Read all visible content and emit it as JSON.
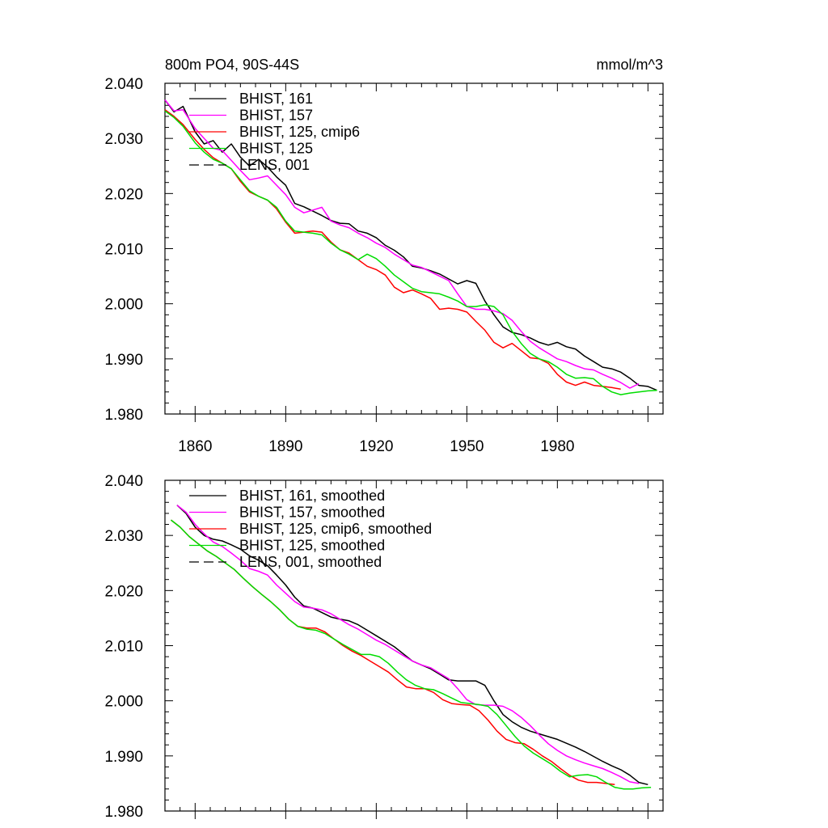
{
  "chart_data": [
    {
      "type": "line",
      "title": "800m PO4, 90S-44S",
      "units": "mmol/m^3",
      "xlim": [
        1850,
        2015
      ],
      "ylim": [
        1.98,
        2.04
      ],
      "x_ticks": [
        1860,
        1890,
        1920,
        1950,
        1980
      ],
      "y_ticks": [
        "2.040",
        "2.030",
        "2.020",
        "2.010",
        "2.000",
        "1.990",
        "1.980"
      ],
      "series": [
        {
          "name": "BHIST, 161",
          "color": "#000000",
          "dash": false,
          "x": [
            1850,
            1853,
            1856,
            1860,
            1863,
            1866,
            1869,
            1872,
            1875,
            1878,
            1881,
            1884,
            1887,
            1890,
            1893,
            1896,
            1899,
            1902,
            1905,
            1908,
            1911,
            1914,
            1917,
            1920,
            1923,
            1926,
            1929,
            1932,
            1935,
            1938,
            1941,
            1944,
            1947,
            1950,
            1953,
            1956,
            1959,
            1962,
            1965,
            1968,
            1971,
            1974,
            1977,
            1980,
            1983,
            1986,
            1989,
            1992,
            1995,
            1998,
            2001,
            2004,
            2007,
            2010,
            2013
          ],
          "y": [
            2.037,
            2.0348,
            2.0358,
            2.0312,
            2.029,
            2.0296,
            2.0275,
            2.029,
            2.0266,
            2.025,
            2.0262,
            2.0248,
            2.023,
            2.0215,
            2.0182,
            2.0176,
            2.0168,
            2.016,
            2.0151,
            2.0146,
            2.0145,
            2.0132,
            2.0128,
            2.012,
            2.0106,
            2.0097,
            2.0085,
            2.0068,
            2.0065,
            2.006,
            2.0054,
            2.0045,
            2.0036,
            2.0042,
            2.0037,
            2.0005,
            1.998,
            1.9958,
            1.9948,
            1.9944,
            1.9938,
            1.993,
            1.9925,
            1.993,
            1.9922,
            1.9918,
            1.9905,
            1.9895,
            1.9885,
            1.9882,
            1.9876,
            1.9865,
            1.9852,
            1.985,
            1.9843
          ]
        },
        {
          "name": "BHIST, 157",
          "color": "#ff00ff",
          "dash": false,
          "x": [
            1850,
            1853,
            1856,
            1860,
            1863,
            1866,
            1869,
            1872,
            1875,
            1878,
            1881,
            1884,
            1887,
            1890,
            1893,
            1896,
            1899,
            1902,
            1905,
            1908,
            1911,
            1914,
            1917,
            1920,
            1923,
            1926,
            1929,
            1932,
            1935,
            1938,
            1941,
            1944,
            1947,
            1950,
            1953,
            1956,
            1959,
            1962,
            1965,
            1968,
            1971,
            1974,
            1977,
            1980,
            1983,
            1986,
            1989,
            1992,
            1995,
            1998,
            2001,
            2004,
            2007
          ],
          "y": [
            2.037,
            2.035,
            2.0352,
            2.0318,
            2.03,
            2.0282,
            2.0278,
            2.026,
            2.0242,
            2.0225,
            2.0228,
            2.0232,
            2.0215,
            2.0198,
            2.0175,
            2.0165,
            2.017,
            2.0175,
            2.015,
            2.0143,
            2.0138,
            2.0128,
            2.012,
            2.011,
            2.0102,
            2.009,
            2.008,
            2.007,
            2.0066,
            2.0058,
            2.005,
            2.0042,
            2.0018,
            1.9995,
            1.999,
            1.999,
            1.9987,
            1.9982,
            1.997,
            1.995,
            1.9932,
            1.992,
            1.991,
            1.99,
            1.9895,
            1.9888,
            1.9882,
            1.988,
            1.9872,
            1.9865,
            1.9857,
            1.9847,
            1.9855
          ]
        },
        {
          "name": "BHIST, 125, cmip6",
          "color": "#ff0000",
          "dash": false,
          "x": [
            1850,
            1853,
            1856,
            1860,
            1863,
            1866,
            1869,
            1872,
            1875,
            1878,
            1881,
            1884,
            1887,
            1890,
            1893,
            1896,
            1899,
            1902,
            1905,
            1908,
            1911,
            1914,
            1917,
            1920,
            1923,
            1926,
            1929,
            1932,
            1935,
            1938,
            1941,
            1944,
            1947,
            1950,
            1953,
            1956,
            1959,
            1962,
            1965,
            1968,
            1971,
            1974,
            1977,
            1980,
            1983,
            1986,
            1989,
            1992,
            1995,
            1998,
            2001
          ],
          "y": [
            2.0352,
            2.034,
            2.0325,
            2.0298,
            2.028,
            2.0265,
            2.0255,
            2.0245,
            2.0222,
            2.0203,
            2.0195,
            2.0188,
            2.0172,
            2.0148,
            2.0128,
            2.013,
            2.0132,
            2.013,
            2.0112,
            2.0098,
            2.0092,
            2.008,
            2.0068,
            2.0062,
            2.0052,
            2.003,
            2.002,
            2.0025,
            2.0018,
            2.001,
            1.999,
            1.9992,
            1.999,
            1.9985,
            1.9968,
            1.9952,
            1.993,
            1.992,
            1.9928,
            1.9915,
            1.9902,
            1.99,
            1.9892,
            1.9872,
            1.9858,
            1.9852,
            1.9858,
            1.9852,
            1.985,
            1.9848,
            1.9845
          ]
        },
        {
          "name": "BHIST, 125",
          "color": "#00dd00",
          "dash": false,
          "x": [
            1850,
            1853,
            1856,
            1860,
            1863,
            1866,
            1869,
            1872,
            1875,
            1878,
            1881,
            1884,
            1887,
            1890,
            1893,
            1896,
            1899,
            1902,
            1905,
            1908,
            1911,
            1914,
            1917,
            1920,
            1923,
            1926,
            1929,
            1932,
            1935,
            1938,
            1941,
            1944,
            1947,
            1950,
            1953,
            1956,
            1959,
            1962,
            1965,
            1968,
            1971,
            1974,
            1977,
            1980,
            1983,
            1986,
            1989,
            1992,
            1995,
            1998,
            2001,
            2004,
            2007,
            2010,
            2013
          ],
          "y": [
            2.035,
            2.0338,
            2.0322,
            2.0292,
            2.0275,
            2.0262,
            2.0255,
            2.0245,
            2.0225,
            2.0205,
            2.0195,
            2.0188,
            2.0175,
            2.015,
            2.0132,
            2.013,
            2.0128,
            2.0125,
            2.011,
            2.0098,
            2.009,
            2.008,
            2.009,
            2.0082,
            2.0068,
            2.0052,
            2.004,
            2.0028,
            2.0022,
            2.002,
            2.0018,
            2.0012,
            2.0005,
            1.9995,
            1.9995,
            1.9998,
            1.9995,
            1.998,
            1.995,
            1.9928,
            1.991,
            1.99,
            1.9895,
            1.9885,
            1.9872,
            1.9865,
            1.9866,
            1.9864,
            1.985,
            1.984,
            1.9835,
            1.9838,
            1.984,
            1.9842,
            1.9843
          ]
        },
        {
          "name": "LENS, 001",
          "color": "#000000",
          "dash": true,
          "x": [],
          "y": []
        }
      ]
    },
    {
      "type": "line",
      "title": "",
      "xlim": [
        1850,
        2015
      ],
      "ylim": [
        1.98,
        2.04
      ],
      "y_ticks": [
        "2.040",
        "2.030",
        "2.020",
        "2.010",
        "2.000",
        "1.990",
        "1.980"
      ],
      "series": [
        {
          "name": "BHIST, 161, smoothed",
          "color": "#000000",
          "dash": false,
          "x": [
            1854,
            1857,
            1860,
            1863,
            1866,
            1869,
            1872,
            1875,
            1878,
            1881,
            1884,
            1887,
            1890,
            1893,
            1896,
            1899,
            1902,
            1905,
            1908,
            1911,
            1914,
            1917,
            1920,
            1923,
            1926,
            1929,
            1932,
            1935,
            1938,
            1941,
            1944,
            1947,
            1950,
            1953,
            1956,
            1959,
            1962,
            1965,
            1968,
            1971,
            1974,
            1977,
            1980,
            1983,
            1986,
            1989,
            1992,
            1995,
            1998,
            2001,
            2004,
            2007,
            2010
          ],
          "y": [
            2.0355,
            2.034,
            2.0315,
            2.03,
            2.0293,
            2.029,
            2.0283,
            2.0275,
            2.0263,
            2.0255,
            2.0245,
            2.0228,
            2.021,
            2.0188,
            2.0172,
            2.0168,
            2.016,
            2.0152,
            2.0148,
            2.0145,
            2.0138,
            2.0128,
            2.0118,
            2.0108,
            2.0098,
            2.0085,
            2.0072,
            2.0065,
            2.0058,
            2.0048,
            2.0038,
            2.0036,
            2.0036,
            2.0036,
            2.0028,
            2.0,
            1.9975,
            1.9962,
            1.9952,
            1.9945,
            1.994,
            1.9935,
            1.993,
            1.9923,
            1.9916,
            1.9908,
            1.9899,
            1.989,
            1.9882,
            1.9875,
            1.9865,
            1.9852,
            1.9848
          ]
        },
        {
          "name": "BHIST, 157, smoothed",
          "color": "#ff00ff",
          "dash": false,
          "x": [
            1854,
            1857,
            1860,
            1863,
            1866,
            1869,
            1872,
            1875,
            1878,
            1881,
            1884,
            1887,
            1890,
            1893,
            1896,
            1899,
            1902,
            1905,
            1908,
            1911,
            1914,
            1917,
            1920,
            1923,
            1926,
            1929,
            1932,
            1935,
            1938,
            1941,
            1944,
            1947,
            1950,
            1953,
            1956,
            1959,
            1962,
            1965,
            1968,
            1971,
            1974,
            1977,
            1980,
            1983,
            1986,
            1989,
            1992,
            1995,
            1998,
            2001,
            2004,
            2007
          ],
          "y": [
            2.0355,
            2.0342,
            2.032,
            2.0303,
            2.0288,
            2.028,
            2.0268,
            2.0255,
            2.024,
            2.0235,
            2.0228,
            2.021,
            2.0195,
            2.018,
            2.017,
            2.0168,
            2.0165,
            2.0158,
            2.0148,
            2.0138,
            2.013,
            2.012,
            2.011,
            2.0102,
            2.0092,
            2.0082,
            2.0072,
            2.0065,
            2.006,
            2.005,
            2.004,
            2.0022,
            2.0002,
            1.9993,
            1.9992,
            1.9992,
            1.999,
            1.9982,
            1.997,
            1.9955,
            1.9938,
            1.9922,
            1.991,
            1.99,
            1.9893,
            1.9887,
            1.9882,
            1.9877,
            1.987,
            1.9862,
            1.9853,
            1.985
          ]
        },
        {
          "name": "BHIST, 125, cmip6, smoothed",
          "color": "#ff0000",
          "dash": false,
          "x": [
            1852,
            1855,
            1858,
            1861,
            1864,
            1867,
            1870,
            1873,
            1876,
            1879,
            1882,
            1885,
            1888,
            1891,
            1894,
            1897,
            1900,
            1903,
            1906,
            1909,
            1912,
            1915,
            1918,
            1921,
            1924,
            1927,
            1930,
            1933,
            1936,
            1939,
            1942,
            1945,
            1948,
            1951,
            1954,
            1957,
            1960,
            1963,
            1966,
            1969,
            1972,
            1975,
            1978,
            1981,
            1984,
            1987,
            1990,
            1993,
            1996,
            1999
          ],
          "y": [
            2.0328,
            2.0315,
            2.0298,
            2.0285,
            2.0272,
            2.0262,
            2.025,
            2.0238,
            2.0222,
            2.0207,
            2.0193,
            2.018,
            2.0165,
            2.0148,
            2.0135,
            2.0132,
            2.0132,
            2.0125,
            2.0112,
            2.01,
            2.009,
            2.0082,
            2.0072,
            2.0062,
            2.0052,
            2.0038,
            2.0025,
            2.0022,
            2.0022,
            2.0015,
            2.0002,
            1.9995,
            1.9993,
            1.9992,
            1.9982,
            1.9965,
            1.9945,
            1.993,
            1.9924,
            1.9922,
            1.9912,
            1.99,
            1.989,
            1.9877,
            1.9865,
            1.9856,
            1.9852,
            1.9852,
            1.985,
            1.9848
          ]
        },
        {
          "name": "BHIST, 125, smoothed",
          "color": "#00dd00",
          "dash": false,
          "x": [
            1852,
            1855,
            1858,
            1861,
            1864,
            1867,
            1870,
            1873,
            1876,
            1879,
            1882,
            1885,
            1888,
            1891,
            1894,
            1897,
            1900,
            1903,
            1906,
            1909,
            1912,
            1915,
            1918,
            1921,
            1924,
            1927,
            1930,
            1933,
            1936,
            1939,
            1942,
            1945,
            1948,
            1951,
            1954,
            1957,
            1960,
            1963,
            1966,
            1969,
            1972,
            1975,
            1978,
            1981,
            1984,
            1987,
            1990,
            1993,
            1996,
            1999,
            2002,
            2005,
            2008,
            2011
          ],
          "y": [
            2.0328,
            2.0315,
            2.0298,
            2.0285,
            2.0272,
            2.0262,
            2.025,
            2.0238,
            2.0222,
            2.0207,
            2.0193,
            2.018,
            2.0165,
            2.0148,
            2.0135,
            2.013,
            2.0128,
            2.0122,
            2.0112,
            2.0102,
            2.0093,
            2.0084,
            2.0084,
            2.008,
            2.0068,
            2.0052,
            2.0038,
            2.0028,
            2.0022,
            2.002,
            2.0013,
            2.0005,
            1.9997,
            1.9995,
            1.9993,
            1.999,
            1.9975,
            1.9955,
            1.9935,
            1.9918,
            1.9905,
            1.9895,
            1.9885,
            1.9872,
            1.9862,
            1.9865,
            1.9866,
            1.9862,
            1.9852,
            1.9843,
            1.984,
            1.984,
            1.9842,
            1.9843
          ]
        },
        {
          "name": "LENS, 001, smoothed",
          "color": "#000000",
          "dash": true,
          "x": [],
          "y": []
        }
      ]
    }
  ]
}
